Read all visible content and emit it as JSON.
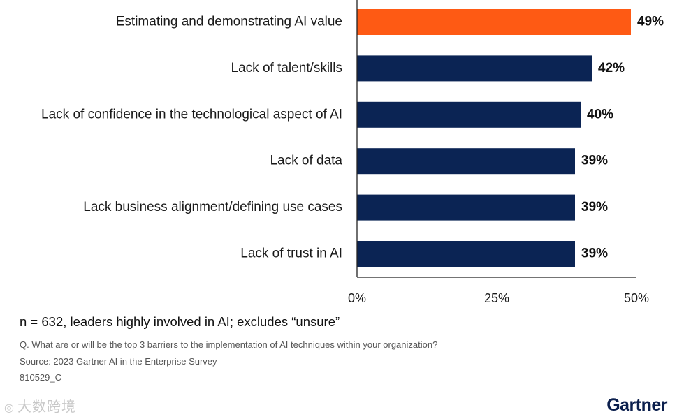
{
  "chart_data": {
    "type": "bar",
    "orientation": "horizontal",
    "categories": [
      "Estimating and demonstrating AI value",
      "Lack of talent/skills",
      "Lack of confidence in the technological aspect of AI",
      "Lack of data",
      "Lack business alignment/defining use cases",
      "Lack of trust in AI"
    ],
    "values": [
      49,
      42,
      40,
      39,
      39,
      39
    ],
    "value_labels": [
      "49%",
      "42%",
      "40%",
      "39%",
      "39%",
      "39%"
    ],
    "highlight_index": 0,
    "xlim": [
      0,
      50
    ],
    "ticks": [
      0,
      25,
      50
    ],
    "tick_labels": [
      "0%",
      "25%",
      "50%"
    ],
    "grid": false,
    "colors": {
      "highlight": "#fe5a14",
      "default": "#0b2454",
      "axis": "#222222"
    }
  },
  "footnote": "n = 632, leaders highly involved in AI; excludes “unsure”",
  "question": "Q. What are or will be the top 3 barriers to the implementation of AI techniques within your organization?",
  "source": "Source: 2023 Gartner AI in the Enterprise Survey",
  "code": "810529_C",
  "watermark": "大数跨境",
  "brand": "Gartner"
}
